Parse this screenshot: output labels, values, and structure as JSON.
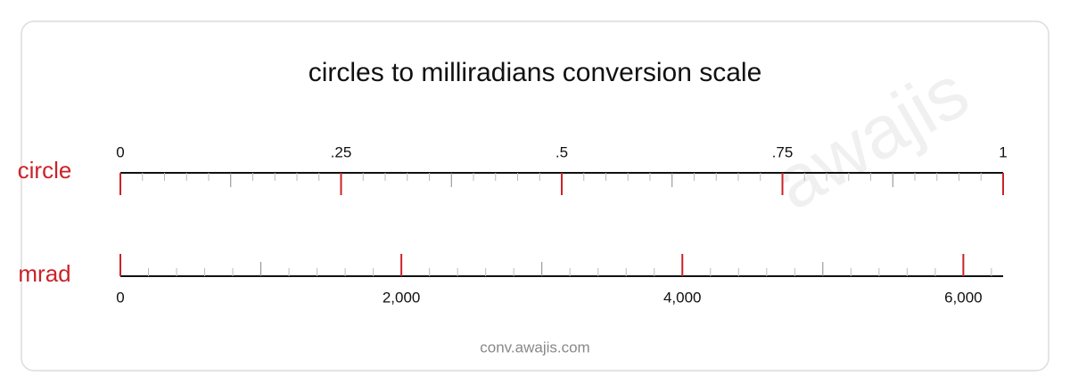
{
  "chart_data": {
    "type": "scale",
    "title": "circles to milliradians conversion scale",
    "watermark": "awajis",
    "footer": "conv.awajis.com",
    "axes": [
      {
        "name": "circle",
        "color": "#cc2229",
        "xlim": [
          0,
          1
        ],
        "xticks": [
          0,
          {
            "value": 0.25,
            "label": ".25"
          },
          {
            "value": 0.5,
            "label": ".5"
          },
          {
            "value": 0.75,
            "label": ".75"
          },
          1
        ],
        "mid_ticks": [
          0.125,
          0.375,
          0.625,
          0.875
        ],
        "minor_ticks": [
          0.025,
          0.05,
          0.075,
          0.1,
          0.15,
          0.175,
          0.2,
          0.225,
          0.275,
          0.3,
          0.325,
          0.35,
          0.4,
          0.425,
          0.45,
          0.475,
          0.525,
          0.55,
          0.575,
          0.6,
          0.65,
          0.675,
          0.7,
          0.725,
          0.775,
          0.8,
          0.825,
          0.85,
          0.9,
          0.925,
          0.95,
          0.975
        ]
      },
      {
        "name": "mrad",
        "color": "#cc2229",
        "xlim": [
          0,
          6283.19
        ],
        "xticks": [
          0,
          {
            "value": 2000,
            "label": "2,000"
          },
          {
            "value": 4000,
            "label": "4,000"
          },
          {
            "value": 6000,
            "label": "6,000"
          }
        ],
        "mid_ticks": [
          1000,
          3000,
          5000
        ],
        "minor_ticks": [
          200,
          400,
          600,
          800,
          1200,
          1400,
          1600,
          1800,
          2200,
          2400,
          2600,
          2800,
          3200,
          3400,
          3600,
          3800,
          4200,
          4400,
          4600,
          4800,
          5200,
          5400,
          5600,
          5800,
          6200
        ]
      }
    ]
  }
}
